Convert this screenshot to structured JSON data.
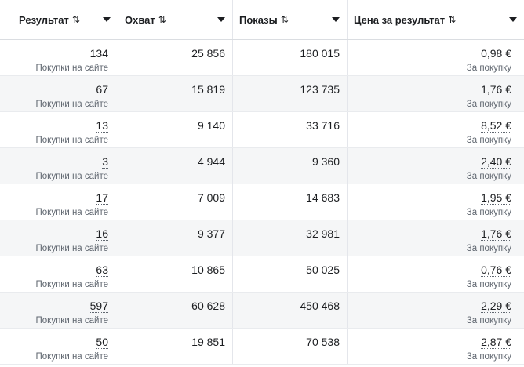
{
  "columns": [
    {
      "label": "Результат",
      "sort_glyph": "⇅"
    },
    {
      "label": "Охват",
      "sort_glyph": "⇅"
    },
    {
      "label": "Показы",
      "sort_glyph": "⇅"
    },
    {
      "label": "Цена за результат",
      "sort_glyph": "⇅"
    }
  ],
  "rows": [
    {
      "result": "134",
      "result_type": "Покупки на сайте",
      "reach": "25 856",
      "impressions": "180 015",
      "cost": "0,98 €",
      "cost_type": "За покупку"
    },
    {
      "result": "67",
      "result_type": "Покупки на сайте",
      "reach": "15 819",
      "impressions": "123 735",
      "cost": "1,76 €",
      "cost_type": "За покупку"
    },
    {
      "result": "13",
      "result_type": "Покупки на сайте",
      "reach": "9 140",
      "impressions": "33 716",
      "cost": "8,52 €",
      "cost_type": "За покупку"
    },
    {
      "result": "3",
      "result_type": "Покупки на сайте",
      "reach": "4 944",
      "impressions": "9 360",
      "cost": "2,40 €",
      "cost_type": "За покупку"
    },
    {
      "result": "17",
      "result_type": "Покупки на сайте",
      "reach": "7 009",
      "impressions": "14 683",
      "cost": "1,95 €",
      "cost_type": "За покупку"
    },
    {
      "result": "16",
      "result_type": "Покупки на сайте",
      "reach": "9 377",
      "impressions": "32 981",
      "cost": "1,76 €",
      "cost_type": "За покупку"
    },
    {
      "result": "63",
      "result_type": "Покупки на сайте",
      "reach": "10 865",
      "impressions": "50 025",
      "cost": "0,76 €",
      "cost_type": "За покупку"
    },
    {
      "result": "597",
      "result_type": "Покупки на сайте",
      "reach": "60 628",
      "impressions": "450 468",
      "cost": "2,29 €",
      "cost_type": "За покупку"
    },
    {
      "result": "50",
      "result_type": "Покупки на сайте",
      "reach": "19 851",
      "impressions": "70 538",
      "cost": "2,87 €",
      "cost_type": "За покупку"
    }
  ],
  "icons": {
    "sort": "sort-arrows-icon",
    "dropdown": "caret-down-icon"
  }
}
